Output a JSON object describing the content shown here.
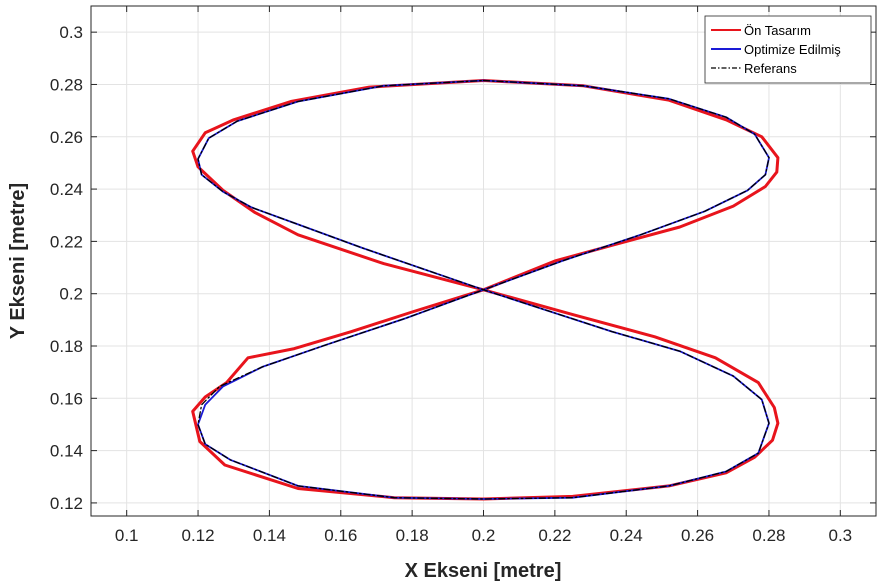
{
  "chart_data": {
    "type": "line",
    "title": "",
    "xlabel": "X Ekseni [metre]",
    "ylabel": "Y Ekseni [metre]",
    "xlim": [
      0.09,
      0.31
    ],
    "ylim": [
      0.115,
      0.31
    ],
    "xticks": [
      0.1,
      0.12,
      0.14,
      0.16,
      0.18,
      0.2,
      0.22,
      0.24,
      0.26,
      0.28,
      0.3
    ],
    "yticks": [
      0.12,
      0.14,
      0.16,
      0.18,
      0.2,
      0.22,
      0.24,
      0.26,
      0.28,
      0.3
    ],
    "xtick_labels": [
      "0.1",
      "0.12",
      "0.14",
      "0.16",
      "0.18",
      "0.2",
      "0.22",
      "0.24",
      "0.26",
      "0.28",
      "0.3"
    ],
    "ytick_labels": [
      "0.12",
      "0.14",
      "0.16",
      "0.18",
      "0.2",
      "0.22",
      "0.24",
      "0.26",
      "0.28",
      "0.3"
    ],
    "grid": true,
    "legend_position": "top-right",
    "series": [
      {
        "name": "Ön Tasarım",
        "color": "#e8141c",
        "style": "solid",
        "x": [
          0.2,
          0.228,
          0.252,
          0.268,
          0.278,
          0.2825,
          0.2822,
          0.279,
          0.27,
          0.255,
          0.236,
          0.22,
          0.2,
          0.18,
          0.163,
          0.147,
          0.134,
          0.128,
          0.122,
          0.1185,
          0.1205,
          0.1275,
          0.148,
          0.175,
          0.2,
          0.225,
          0.252,
          0.268,
          0.276,
          0.281,
          0.2825,
          0.2815,
          0.277,
          0.265,
          0.248,
          0.225,
          0.2,
          0.172,
          0.148,
          0.136,
          0.127,
          0.12,
          0.1185,
          0.122,
          0.13,
          0.146,
          0.168,
          0.2
        ],
        "y": [
          0.2815,
          0.2795,
          0.274,
          0.2665,
          0.26,
          0.252,
          0.2465,
          0.241,
          0.2335,
          0.2255,
          0.2185,
          0.2125,
          0.2015,
          0.193,
          0.1855,
          0.179,
          0.1755,
          0.166,
          0.1605,
          0.155,
          0.1435,
          0.1345,
          0.1255,
          0.122,
          0.1215,
          0.1225,
          0.1265,
          0.1315,
          0.1375,
          0.144,
          0.1505,
          0.1565,
          0.166,
          0.1755,
          0.1835,
          0.192,
          0.2015,
          0.2115,
          0.2225,
          0.231,
          0.2395,
          0.2485,
          0.2545,
          0.2615,
          0.2665,
          0.2735,
          0.279,
          0.2815
        ]
      },
      {
        "name": "Optimize Edilmiş",
        "color": "#1a1ad6",
        "style": "solid",
        "x": [
          0.2,
          0.228,
          0.252,
          0.268,
          0.276,
          0.28,
          0.279,
          0.274,
          0.262,
          0.244,
          0.222,
          0.2,
          0.178,
          0.156,
          0.138,
          0.127,
          0.122,
          0.12,
          0.122,
          0.129,
          0.148,
          0.175,
          0.2,
          0.225,
          0.252,
          0.268,
          0.277,
          0.28,
          0.278,
          0.27,
          0.255,
          0.236,
          0.2,
          0.166,
          0.148,
          0.135,
          0.127,
          0.121,
          0.12,
          0.123,
          0.131,
          0.148,
          0.172,
          0.2
        ],
        "y": [
          0.2815,
          0.2795,
          0.2745,
          0.2675,
          0.261,
          0.252,
          0.2455,
          0.2395,
          0.2315,
          0.2225,
          0.2125,
          0.2015,
          0.1905,
          0.1805,
          0.172,
          0.1645,
          0.1575,
          0.15,
          0.1425,
          0.1365,
          0.1265,
          0.122,
          0.1215,
          0.122,
          0.1265,
          0.132,
          0.139,
          0.1505,
          0.1595,
          0.1685,
          0.178,
          0.1855,
          0.2015,
          0.2175,
          0.2265,
          0.233,
          0.239,
          0.2455,
          0.2515,
          0.2595,
          0.266,
          0.2735,
          0.2795,
          0.2815
        ]
      },
      {
        "name": "Referans",
        "color": "#000000",
        "style": "dashdot",
        "x": [
          0.2,
          0.228,
          0.252,
          0.268,
          0.276,
          0.28,
          0.279,
          0.274,
          0.262,
          0.244,
          0.222,
          0.2,
          0.178,
          0.156,
          0.138,
          0.126,
          0.121,
          0.12,
          0.122,
          0.129,
          0.148,
          0.175,
          0.2,
          0.225,
          0.252,
          0.268,
          0.277,
          0.28,
          0.278,
          0.27,
          0.255,
          0.236,
          0.2,
          0.166,
          0.148,
          0.135,
          0.127,
          0.121,
          0.12,
          0.123,
          0.131,
          0.148,
          0.172,
          0.2
        ],
        "y": [
          0.2815,
          0.2795,
          0.2745,
          0.2675,
          0.261,
          0.252,
          0.2455,
          0.2395,
          0.2315,
          0.2225,
          0.2125,
          0.2015,
          0.1905,
          0.1805,
          0.172,
          0.1645,
          0.1575,
          0.15,
          0.1425,
          0.1365,
          0.1265,
          0.122,
          0.1215,
          0.122,
          0.1265,
          0.132,
          0.139,
          0.1505,
          0.1595,
          0.1685,
          0.178,
          0.1855,
          0.2015,
          0.2175,
          0.2265,
          0.233,
          0.239,
          0.2455,
          0.2515,
          0.2595,
          0.266,
          0.2735,
          0.2795,
          0.2815
        ]
      }
    ]
  }
}
